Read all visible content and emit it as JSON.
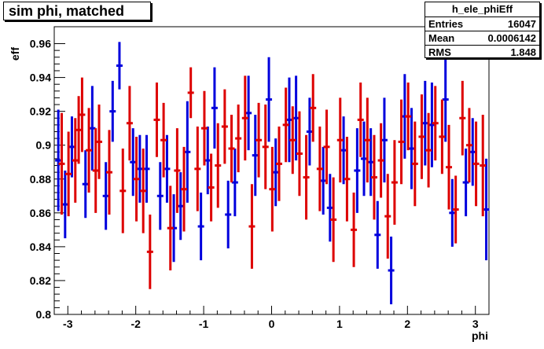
{
  "title": "sim phi, matched",
  "stats": {
    "name": "h_ele_phiEff",
    "entries_label": "Entries",
    "entries_value": "16047",
    "mean_label": "Mean",
    "mean_value": "0.0006142",
    "rms_label": "RMS",
    "rms_value": "1.848"
  },
  "chart_data": {
    "type": "scatter",
    "xlabel": "phi",
    "ylabel": "eff",
    "xlim": [
      -3.2,
      3.2
    ],
    "ylim": [
      0.8,
      0.97
    ],
    "xticks": [
      "-3",
      "-2",
      "-1",
      "0",
      "1",
      "2",
      "3"
    ],
    "yticks": [
      "0.8",
      "0.82",
      "0.84",
      "0.86",
      "0.88",
      "0.9",
      "0.92",
      "0.94",
      "0.96"
    ],
    "grid": false,
    "colors": {
      "blue": "#0000dd",
      "red": "#dd0000"
    },
    "series": [
      {
        "color": "blue",
        "points": [
          {
            "x": -3.14,
            "y": 0.891,
            "err": 0.03
          },
          {
            "x": -3.04,
            "y": 0.865,
            "err": 0.02
          },
          {
            "x": -2.94,
            "y": 0.899,
            "err": 0.018
          },
          {
            "x": -2.74,
            "y": 0.877,
            "err": 0.02
          },
          {
            "x": -2.64,
            "y": 0.91,
            "err": 0.025
          },
          {
            "x": -2.44,
            "y": 0.87,
            "err": 0.02
          },
          {
            "x": -2.34,
            "y": 0.92,
            "err": 0.018
          },
          {
            "x": -2.24,
            "y": 0.947,
            "err": 0.014
          },
          {
            "x": -2.04,
            "y": 0.89,
            "err": 0.02
          },
          {
            "x": -1.94,
            "y": 0.886,
            "err": 0.02
          },
          {
            "x": -1.84,
            "y": 0.886,
            "err": 0.02
          },
          {
            "x": -1.64,
            "y": 0.87,
            "err": 0.02
          },
          {
            "x": -1.54,
            "y": 0.886,
            "err": 0.02
          },
          {
            "x": -1.44,
            "y": 0.851,
            "err": 0.02
          },
          {
            "x": -1.34,
            "y": 0.864,
            "err": 0.02
          },
          {
            "x": -1.24,
            "y": 0.896,
            "err": 0.03
          },
          {
            "x": -1.04,
            "y": 0.852,
            "err": 0.02
          },
          {
            "x": -0.94,
            "y": 0.891,
            "err": 0.02
          },
          {
            "x": -0.84,
            "y": 0.922,
            "err": 0.024
          },
          {
            "x": -0.64,
            "y": 0.859,
            "err": 0.02
          },
          {
            "x": -0.54,
            "y": 0.878,
            "err": 0.02
          },
          {
            "x": -0.34,
            "y": 0.919,
            "err": 0.022
          },
          {
            "x": -0.24,
            "y": 0.894,
            "err": 0.024
          },
          {
            "x": -0.04,
            "y": 0.927,
            "err": 0.025
          },
          {
            "x": 0.06,
            "y": 0.884,
            "err": 0.02
          },
          {
            "x": 0.26,
            "y": 0.915,
            "err": 0.025
          },
          {
            "x": 0.36,
            "y": 0.916,
            "err": 0.025
          },
          {
            "x": 0.56,
            "y": 0.908,
            "err": 0.02
          },
          {
            "x": 0.76,
            "y": 0.879,
            "err": 0.02
          },
          {
            "x": 0.86,
            "y": 0.863,
            "err": 0.02
          },
          {
            "x": 1.06,
            "y": 0.897,
            "err": 0.02
          },
          {
            "x": 1.26,
            "y": 0.885,
            "err": 0.025
          },
          {
            "x": 1.36,
            "y": 0.892,
            "err": 0.022
          },
          {
            "x": 1.46,
            "y": 0.89,
            "err": 0.02
          },
          {
            "x": 1.56,
            "y": 0.847,
            "err": 0.02
          },
          {
            "x": 1.66,
            "y": 0.903,
            "err": 0.025
          },
          {
            "x": 1.76,
            "y": 0.826,
            "err": 0.02
          },
          {
            "x": 1.96,
            "y": 0.917,
            "err": 0.025
          },
          {
            "x": 2.06,
            "y": 0.898,
            "err": 0.024
          },
          {
            "x": 2.26,
            "y": 0.913,
            "err": 0.025
          },
          {
            "x": 2.36,
            "y": 0.912,
            "err": 0.025
          },
          {
            "x": 2.56,
            "y": 0.927,
            "err": 0.025
          },
          {
            "x": 2.66,
            "y": 0.86,
            "err": 0.02
          },
          {
            "x": 2.86,
            "y": 0.878,
            "err": 0.02
          },
          {
            "x": 2.96,
            "y": 0.896,
            "err": 0.02
          },
          {
            "x": 3.16,
            "y": 0.862,
            "err": 0.03
          }
        ]
      },
      {
        "color": "red",
        "points": [
          {
            "x": -3.09,
            "y": 0.889,
            "err": 0.03
          },
          {
            "x": -2.99,
            "y": 0.883,
            "err": 0.025
          },
          {
            "x": -2.89,
            "y": 0.891,
            "err": 0.025
          },
          {
            "x": -2.84,
            "y": 0.909,
            "err": 0.02
          },
          {
            "x": -2.79,
            "y": 0.918,
            "err": 0.022
          },
          {
            "x": -2.69,
            "y": 0.897,
            "err": 0.025
          },
          {
            "x": -2.59,
            "y": 0.885,
            "err": 0.025
          },
          {
            "x": -2.54,
            "y": 0.902,
            "err": 0.022
          },
          {
            "x": -2.39,
            "y": 0.884,
            "err": 0.025
          },
          {
            "x": -2.19,
            "y": 0.873,
            "err": 0.025
          },
          {
            "x": -2.09,
            "y": 0.913,
            "err": 0.022
          },
          {
            "x": -1.99,
            "y": 0.88,
            "err": 0.025
          },
          {
            "x": -1.89,
            "y": 0.873,
            "err": 0.025
          },
          {
            "x": -1.79,
            "y": 0.837,
            "err": 0.022
          },
          {
            "x": -1.69,
            "y": 0.915,
            "err": 0.022
          },
          {
            "x": -1.59,
            "y": 0.903,
            "err": 0.022
          },
          {
            "x": -1.49,
            "y": 0.851,
            "err": 0.025
          },
          {
            "x": -1.39,
            "y": 0.885,
            "err": 0.025
          },
          {
            "x": -1.29,
            "y": 0.874,
            "err": 0.025
          },
          {
            "x": -1.19,
            "y": 0.931,
            "err": 0.015
          },
          {
            "x": -1.09,
            "y": 0.886,
            "err": 0.025
          },
          {
            "x": -0.99,
            "y": 0.91,
            "err": 0.022
          },
          {
            "x": -0.89,
            "y": 0.875,
            "err": 0.02
          },
          {
            "x": -0.79,
            "y": 0.888,
            "err": 0.025
          },
          {
            "x": -0.69,
            "y": 0.911,
            "err": 0.022
          },
          {
            "x": -0.59,
            "y": 0.898,
            "err": 0.02
          },
          {
            "x": -0.49,
            "y": 0.904,
            "err": 0.02
          },
          {
            "x": -0.39,
            "y": 0.916,
            "err": 0.025
          },
          {
            "x": -0.29,
            "y": 0.852,
            "err": 0.025
          },
          {
            "x": -0.19,
            "y": 0.903,
            "err": 0.022
          },
          {
            "x": -0.09,
            "y": 0.899,
            "err": 0.025
          },
          {
            "x": 0.01,
            "y": 0.874,
            "err": 0.025
          },
          {
            "x": 0.11,
            "y": 0.889,
            "err": 0.022
          },
          {
            "x": 0.21,
            "y": 0.912,
            "err": 0.022
          },
          {
            "x": 0.31,
            "y": 0.903,
            "err": 0.02
          },
          {
            "x": 0.41,
            "y": 0.895,
            "err": 0.025
          },
          {
            "x": 0.51,
            "y": 0.881,
            "err": 0.025
          },
          {
            "x": 0.61,
            "y": 0.922,
            "err": 0.02
          },
          {
            "x": 0.71,
            "y": 0.886,
            "err": 0.025
          },
          {
            "x": 0.81,
            "y": 0.899,
            "err": 0.022
          },
          {
            "x": 0.91,
            "y": 0.856,
            "err": 0.025
          },
          {
            "x": 1.01,
            "y": 0.903,
            "err": 0.025
          },
          {
            "x": 1.11,
            "y": 0.88,
            "err": 0.025
          },
          {
            "x": 1.21,
            "y": 0.85,
            "err": 0.022
          },
          {
            "x": 1.31,
            "y": 0.915,
            "err": 0.022
          },
          {
            "x": 1.41,
            "y": 0.903,
            "err": 0.025
          },
          {
            "x": 1.51,
            "y": 0.881,
            "err": 0.025
          },
          {
            "x": 1.61,
            "y": 0.891,
            "err": 0.022
          },
          {
            "x": 1.71,
            "y": 0.858,
            "err": 0.025
          },
          {
            "x": 1.81,
            "y": 0.878,
            "err": 0.025
          },
          {
            "x": 1.91,
            "y": 0.902,
            "err": 0.025
          },
          {
            "x": 2.01,
            "y": 0.917,
            "err": 0.02
          },
          {
            "x": 2.11,
            "y": 0.889,
            "err": 0.025
          },
          {
            "x": 2.21,
            "y": 0.905,
            "err": 0.025
          },
          {
            "x": 2.31,
            "y": 0.897,
            "err": 0.022
          },
          {
            "x": 2.41,
            "y": 0.913,
            "err": 0.022
          },
          {
            "x": 2.51,
            "y": 0.905,
            "err": 0.022
          },
          {
            "x": 2.61,
            "y": 0.887,
            "err": 0.025
          },
          {
            "x": 2.71,
            "y": 0.862,
            "err": 0.02
          },
          {
            "x": 2.81,
            "y": 0.916,
            "err": 0.022
          },
          {
            "x": 2.91,
            "y": 0.9,
            "err": 0.022
          },
          {
            "x": 3.01,
            "y": 0.889,
            "err": 0.025
          },
          {
            "x": 3.11,
            "y": 0.888,
            "err": 0.03
          }
        ]
      }
    ]
  }
}
